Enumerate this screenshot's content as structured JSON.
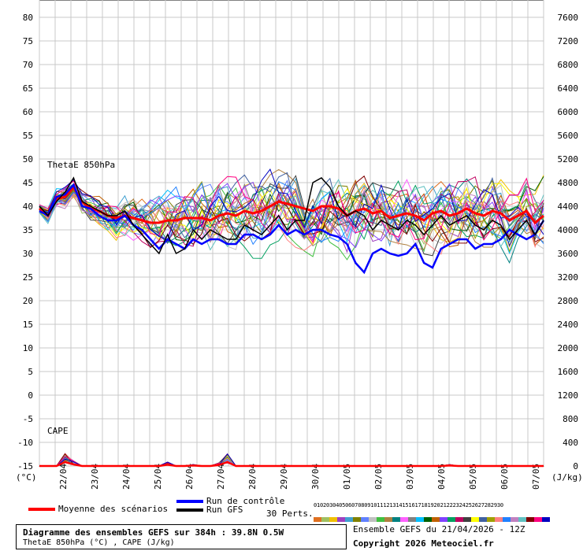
{
  "chart_data": {
    "type": "line",
    "left_axis": {
      "unit": "(°C)",
      "ticks": [
        80,
        75,
        70,
        65,
        60,
        55,
        50,
        45,
        40,
        35,
        30,
        25,
        20,
        15,
        10,
        5,
        0,
        -5,
        -10,
        -15
      ],
      "ylim": [
        -15,
        80
      ]
    },
    "right_axis": {
      "unit": "(J/kg)",
      "ticks": [
        7600,
        7200,
        6800,
        6400,
        6000,
        5600,
        5200,
        4800,
        4400,
        4000,
        3600,
        3200,
        2800,
        2400,
        2000,
        1600,
        1200,
        800,
        400,
        0
      ]
    },
    "x_ticks": [
      "22/04",
      "23/04",
      "24/04",
      "25/04",
      "26/04",
      "27/04",
      "28/04",
      "29/04",
      "30/04",
      "01/05",
      "02/05",
      "03/05",
      "04/05",
      "05/05",
      "06/05",
      "07/05"
    ],
    "panel_labels": {
      "theta": "ThetaE 850hPa",
      "cape": "CAPE"
    },
    "grid": true,
    "series": [
      {
        "name": "Moyenne des scénarios",
        "color": "#ff0000",
        "values": [
          39.5,
          38,
          41.5,
          42,
          44,
          41,
          39.5,
          39,
          38,
          37.5,
          38,
          37.5,
          37,
          36.5,
          36.5,
          37,
          37,
          37.5,
          37.5,
          37.5,
          37,
          38,
          38.5,
          38,
          39,
          38.5,
          39,
          40,
          41,
          40.5,
          40,
          39.5,
          39,
          40,
          40,
          39.5,
          38,
          39,
          39.5,
          38.5,
          39,
          37.5,
          38,
          38.5,
          38,
          37,
          38.5,
          39,
          38,
          38.5,
          39.5,
          38.5,
          38,
          39,
          38.5,
          37,
          38,
          39,
          36.5,
          38
        ]
      },
      {
        "name": "Run de contrôle",
        "color": "#0000ff",
        "values": [
          39,
          38,
          42,
          42.5,
          44.5,
          40,
          39.5,
          38,
          37,
          37,
          38,
          36,
          35,
          33,
          31,
          33,
          32,
          31,
          33,
          32,
          33,
          33,
          32,
          32,
          34,
          34,
          33,
          34,
          36,
          34,
          35,
          34,
          35,
          35,
          34,
          33.5,
          32,
          28,
          26,
          30,
          31,
          30,
          29.5,
          30,
          32,
          28,
          27,
          31,
          32,
          33,
          33,
          31,
          32,
          32,
          33,
          35,
          34,
          33,
          34,
          37
        ]
      },
      {
        "name": "Run GFS",
        "color": "#000000",
        "values": [
          40,
          38,
          41,
          43,
          46,
          41,
          40,
          39,
          38,
          38,
          39,
          36,
          34,
          32,
          30,
          34,
          30,
          31,
          35,
          33,
          35,
          34,
          33,
          33,
          36,
          35,
          34,
          36,
          38,
          35,
          37,
          37,
          45,
          46,
          44,
          40,
          38,
          39,
          38,
          35,
          37,
          36,
          35,
          37,
          36,
          34,
          36,
          38,
          36,
          37,
          38,
          36,
          35,
          37,
          36,
          33,
          35,
          37,
          34,
          37
        ]
      }
    ],
    "perturbations": {
      "count_label": "30 Perts.",
      "numbers": [
        "01",
        "02",
        "03",
        "04",
        "05",
        "06",
        "07",
        "08",
        "09",
        "10",
        "11",
        "12",
        "13",
        "14",
        "15",
        "16",
        "17",
        "18",
        "19",
        "20",
        "21",
        "22",
        "23",
        "24",
        "25",
        "26",
        "27",
        "28",
        "29",
        "30"
      ],
      "colors": [
        "#e07020",
        "#a0c060",
        "#f0c000",
        "#a040c0",
        "#40a0d0",
        "#808000",
        "#6080ff",
        "#c0c0c0",
        "#40c040",
        "#b08040",
        "#008080",
        "#ff60ff",
        "#808080",
        "#00c0ff",
        "#006000",
        "#c06000",
        "#8040ff",
        "#00a060",
        "#c00060",
        "#404040",
        "#ffff00",
        "#4060a0",
        "#a0a000",
        "#ff8080",
        "#2080ff",
        "#c080c0",
        "#60c0c0",
        "#800000",
        "#ff0080",
        "#0000c0"
      ]
    },
    "cape_peaks_jkg": [
      0,
      0,
      0,
      250,
      100,
      0,
      0,
      0,
      0,
      0,
      0,
      0,
      0,
      0,
      0,
      80,
      0,
      0,
      30,
      0,
      0,
      60,
      250,
      0,
      0,
      0,
      0,
      0,
      0,
      0,
      0,
      0,
      0,
      0,
      0,
      0,
      0,
      0,
      0,
      0,
      0,
      0,
      0,
      0,
      0,
      0,
      0,
      0,
      30,
      0,
      0,
      0,
      0,
      0,
      0,
      0,
      0,
      0,
      0,
      0
    ]
  },
  "legend": {
    "mean_label": "Moyenne des scénarios",
    "control_label": "Run de contrôle",
    "gfs_label": "Run GFS",
    "perts_label": "30 Perts."
  },
  "footer": {
    "title": "Diagramme des ensembles GEFS sur 384h : 39.8N 0.5W",
    "subtitle": "ThetaE 850hPa (°C) , CAPE (J/kg)",
    "run": "Ensemble GEFS du 21/04/2026 - 12Z",
    "copyright": "Copyright 2026 Meteociel.fr"
  }
}
